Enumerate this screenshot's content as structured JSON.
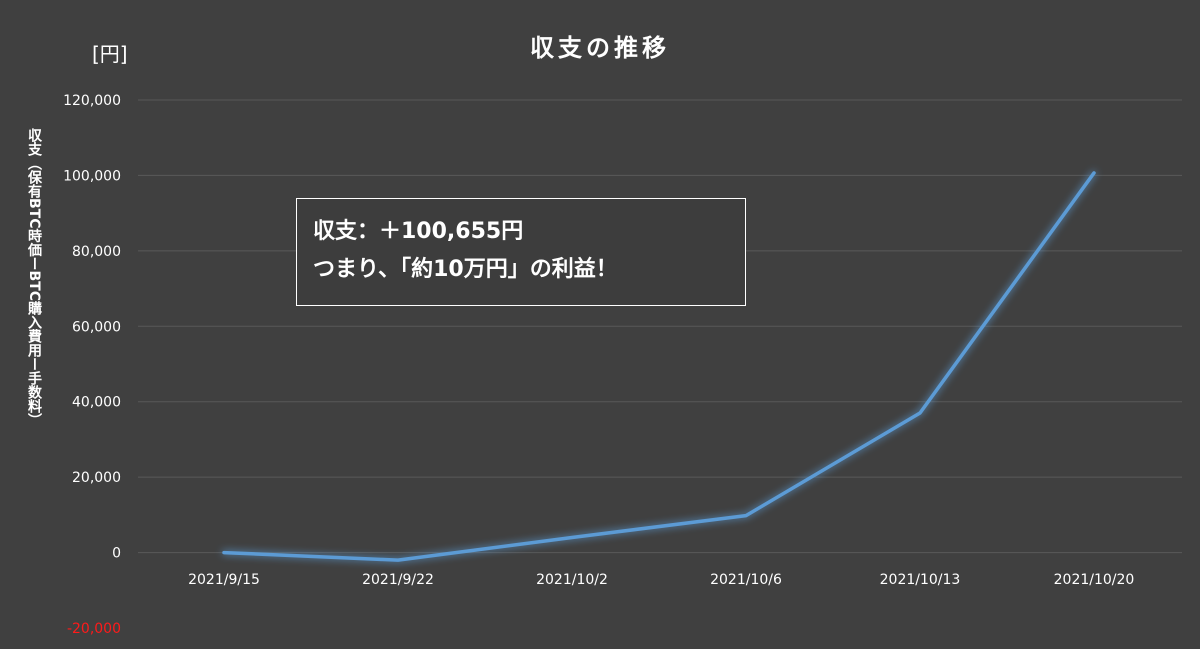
{
  "chart_data": {
    "type": "line",
    "title": "収支の推移",
    "y_unit": "[円]",
    "ylabel": "収支（保有BTC時価ーBTC購入費用ー手数料）",
    "xlabel": "",
    "categories": [
      "2021/9/15",
      "2021/9/22",
      "2021/10/2",
      "2021/10/6",
      "2021/10/13",
      "2021/10/20"
    ],
    "series": [
      {
        "values": [
          0,
          -2000,
          4000,
          9800,
          37000,
          100655
        ]
      }
    ],
    "ylim": [
      -20000,
      120000
    ],
    "yticks": [
      120000,
      100000,
      80000,
      60000,
      40000,
      20000,
      0,
      -20000
    ],
    "ytick_labels": [
      "120,000",
      "100,000",
      "80,000",
      "60,000",
      "40,000",
      "20,000",
      "0",
      "-20,000"
    ],
    "grid": true,
    "legend": "none",
    "annotation": {
      "line1": "収支：＋100,655円",
      "line2": "つまり、「約10万円」の利益！"
    },
    "colors": {
      "background": "#404040",
      "line": "#5b9bd5",
      "grid": "#595959",
      "negative_tick": "#ff1a1a"
    }
  }
}
